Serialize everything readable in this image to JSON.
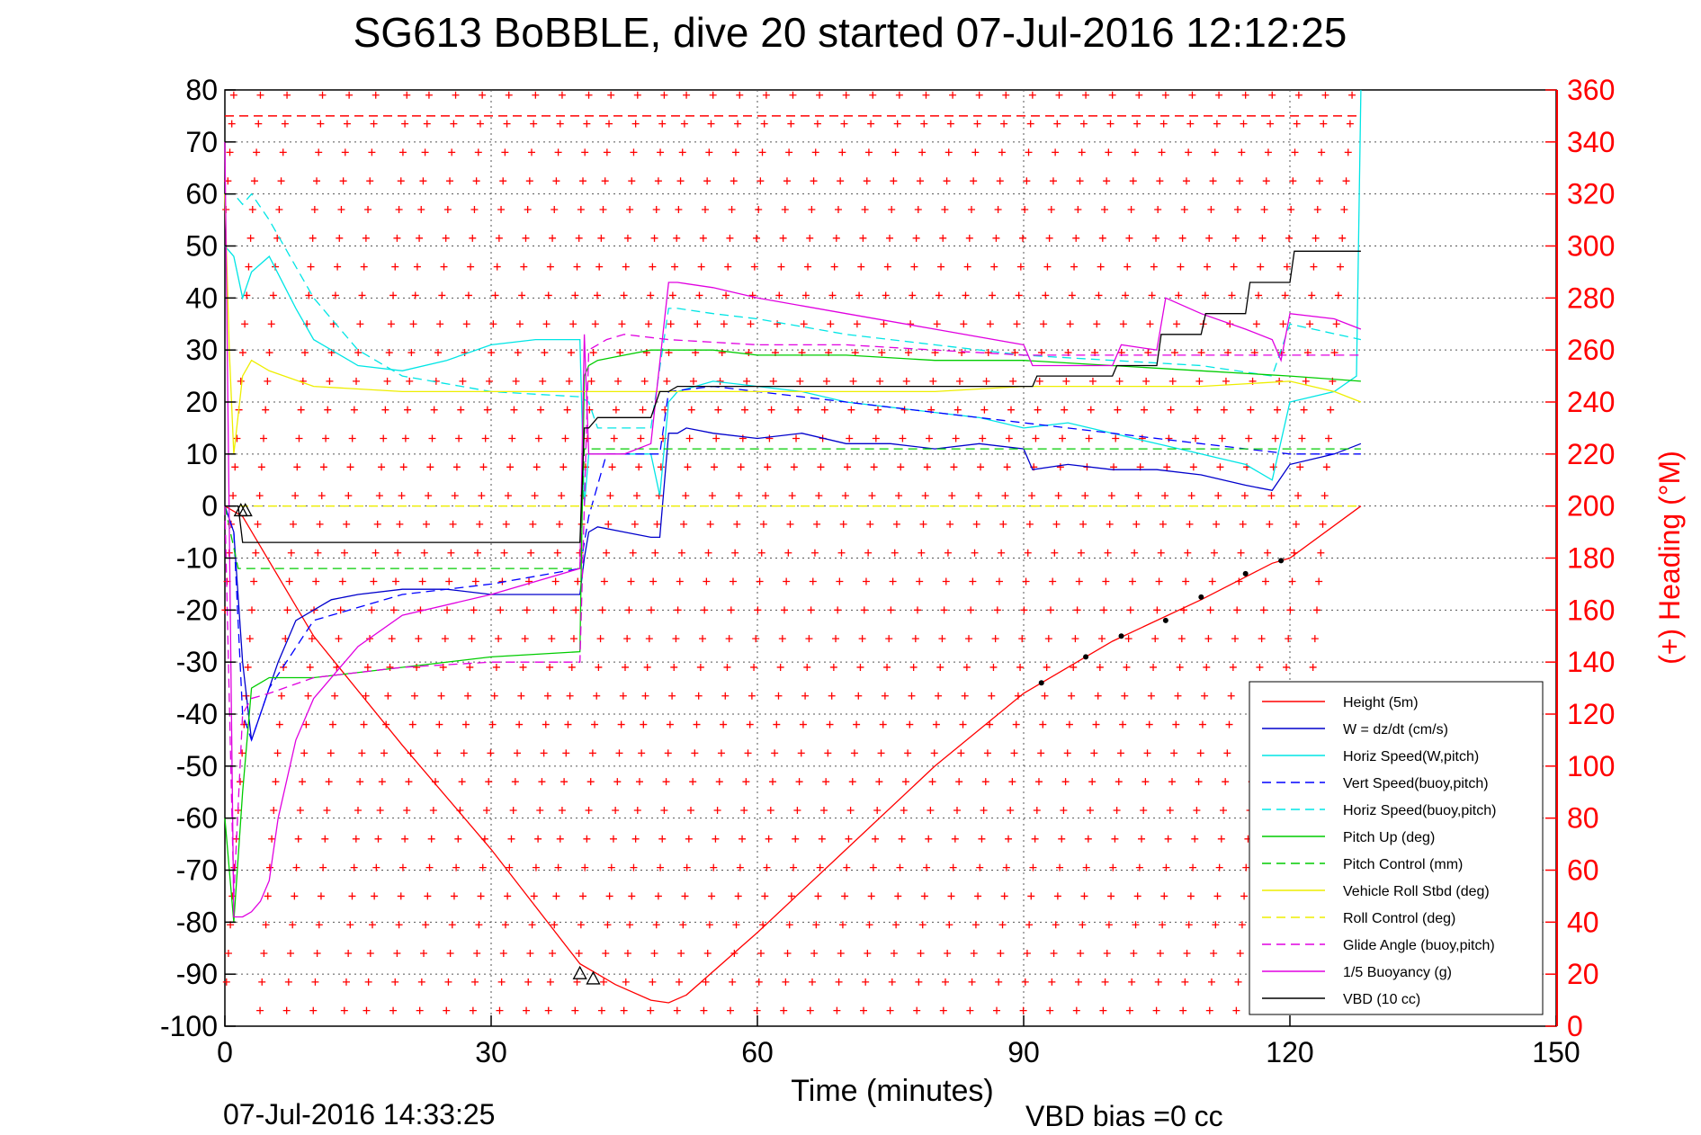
{
  "chart_data": {
    "type": "line",
    "title": "SG613 BoBBLE, dive 20 started 07-Jul-2016 12:12:25",
    "xlabel": "Time (minutes)",
    "ylabel_right": "(+) Heading (°M)",
    "xlim": [
      0,
      150
    ],
    "ylim": [
      -100,
      80
    ],
    "ylim_right": [
      0,
      360
    ],
    "x_ticks": [
      "0",
      "30",
      "60",
      "90",
      "120",
      "150"
    ],
    "y_ticks": [
      "80",
      "70",
      "60",
      "50",
      "40",
      "30",
      "20",
      "10",
      "0",
      "-10",
      "-20",
      "-30",
      "-40",
      "-50",
      "-60",
      "-70",
      "-80",
      "-90",
      "-100"
    ],
    "y_right_ticks": [
      "360",
      "340",
      "320",
      "300",
      "280",
      "260",
      "240",
      "220",
      "200",
      "180",
      "160",
      "140",
      "120",
      "100",
      "80",
      "60",
      "40",
      "20",
      "0"
    ],
    "grid": true,
    "legend_position": "bottom-right",
    "footer_left": "07-Jul-2016 14:33:25",
    "footer_right": "VBD bias =0 cc",
    "series": [
      {
        "name": "Height (5m)",
        "color": "#ff0000",
        "style": "solid",
        "x": [
          0,
          2,
          10,
          20,
          30,
          40,
          44,
          48,
          50,
          52,
          60,
          70,
          80,
          90,
          100,
          110,
          118,
          120,
          128
        ],
        "y": [
          0,
          -2,
          -25,
          -46,
          -66,
          -88,
          -92,
          -95,
          -95.5,
          -94,
          -82,
          -66,
          -50,
          -36,
          -26,
          -18,
          -11,
          -10,
          0
        ]
      },
      {
        "name": "W = dz/dt (cm/s)",
        "color": "#0000cc",
        "style": "solid",
        "x": [
          0,
          1,
          2,
          3,
          4,
          5,
          6,
          8,
          10,
          12,
          15,
          20,
          25,
          30,
          35,
          40,
          40.5,
          41,
          42,
          45,
          48,
          49,
          50,
          51,
          52,
          55,
          60,
          65,
          70,
          75,
          80,
          85,
          90,
          91,
          95,
          100,
          105,
          110,
          115,
          118,
          120,
          125,
          128
        ],
        "y": [
          0,
          -5,
          -30,
          -45,
          -40,
          -35,
          -30,
          -22,
          -20,
          -18,
          -17,
          -16,
          -16,
          -17,
          -17,
          -17,
          -10,
          -5,
          -4,
          -5,
          -6,
          -6,
          14,
          14,
          15,
          14,
          13,
          14,
          12,
          12,
          11,
          12,
          11,
          7,
          8,
          7,
          7,
          6,
          4,
          3,
          8,
          10,
          12
        ]
      },
      {
        "name": "Horiz Speed(W,pitch)",
        "color": "#00e5e5",
        "style": "solid",
        "x": [
          0,
          1,
          2,
          3,
          5,
          8,
          10,
          15,
          20,
          25,
          30,
          35,
          40,
          40.5,
          41,
          42,
          45,
          48,
          49,
          50,
          51,
          55,
          60,
          65,
          70,
          75,
          80,
          85,
          90,
          95,
          100,
          105,
          110,
          115,
          118,
          120,
          125,
          127.5,
          128
        ],
        "y": [
          50,
          48,
          40,
          45,
          48,
          38,
          32,
          27,
          26,
          28,
          31,
          32,
          32,
          0,
          10,
          10,
          10,
          10,
          2,
          20,
          22,
          24,
          23,
          22,
          20,
          19,
          18,
          17,
          15,
          16,
          14,
          12,
          10,
          8,
          5,
          20,
          22,
          25,
          80
        ]
      },
      {
        "name": "Vert Speed(buoy,pitch)",
        "color": "#0000ff",
        "style": "dashed",
        "x": [
          0,
          1,
          2,
          3,
          5,
          10,
          20,
          30,
          40,
          41,
          43,
          48,
          49,
          50,
          55,
          60,
          70,
          80,
          90,
          100,
          110,
          120,
          128
        ],
        "y": [
          0,
          -5,
          -40,
          -45,
          -35,
          -22,
          -17,
          -15,
          -12,
          -2,
          10,
          10,
          10,
          22,
          23,
          22,
          20,
          18,
          16,
          14,
          12,
          10,
          10
        ]
      },
      {
        "name": "Horiz Speed(buoy,pitch)",
        "color": "#00e5e5",
        "style": "dashed",
        "x": [
          0,
          1,
          2,
          3,
          5,
          10,
          15,
          20,
          30,
          40,
          41,
          42,
          45,
          48,
          50,
          51,
          55,
          60,
          70,
          80,
          90,
          100,
          110,
          118,
          120,
          128
        ],
        "y": [
          60,
          60,
          58,
          60,
          55,
          40,
          30,
          25,
          22,
          21,
          20,
          15,
          15,
          15,
          38,
          38,
          37,
          36,
          33,
          31,
          29,
          28,
          27,
          25,
          35,
          32
        ]
      },
      {
        "name": "Pitch Up (deg)",
        "color": "#00cc00",
        "style": "solid",
        "x": [
          0,
          1,
          2,
          3,
          5,
          10,
          20,
          30,
          40,
          40.5,
          41,
          42,
          45,
          48,
          50,
          55,
          60,
          70,
          80,
          90,
          100,
          110,
          120,
          128
        ],
        "y": [
          -60,
          -80,
          -55,
          -35,
          -33,
          -33,
          -31,
          -29,
          -28,
          25,
          27,
          28,
          29,
          30,
          30,
          30,
          29,
          29,
          28,
          28,
          27,
          26,
          25,
          24
        ]
      },
      {
        "name": "Pitch Control (mm)",
        "color": "#00cc00",
        "style": "dashed",
        "x": [
          0,
          1.5,
          2,
          40,
          40.5,
          41,
          128
        ],
        "y": [
          0,
          -12,
          -12,
          -12,
          11,
          11,
          11
        ]
      },
      {
        "name": "Vehicle Roll Stbd (deg)",
        "color": "#eeee00",
        "style": "solid",
        "x": [
          0,
          0.5,
          1,
          2,
          3,
          5,
          10,
          20,
          30,
          40,
          50,
          60,
          70,
          80,
          90,
          100,
          110,
          120,
          125,
          128
        ],
        "y": [
          60,
          30,
          10,
          25,
          28,
          26,
          23,
          22,
          22,
          22,
          22,
          22,
          22,
          22,
          23,
          23,
          23,
          24,
          22,
          20
        ]
      },
      {
        "name": "Roll Control (deg)",
        "color": "#eeee00",
        "style": "dashed",
        "x": [
          0,
          128
        ],
        "y": [
          0,
          0
        ]
      },
      {
        "name": "Glide Angle (buoy,pitch)",
        "color": "#e000e0",
        "style": "dashed",
        "x": [
          0,
          1,
          2,
          3,
          5,
          10,
          20,
          30,
          40,
          41,
          43,
          45,
          50,
          60,
          70,
          80,
          90,
          100,
          110,
          120,
          128
        ],
        "y": [
          0,
          -75,
          -40,
          -37,
          -36,
          -33,
          -31,
          -30,
          -30,
          30,
          32,
          33,
          32,
          31,
          31,
          30,
          29,
          29,
          29,
          29,
          29
        ]
      },
      {
        "name": "1/5 Buoyancy (g)",
        "color": "#e000e0",
        "style": "solid",
        "x": [
          0,
          1,
          2,
          3,
          4,
          5,
          6,
          8,
          10,
          15,
          20,
          30,
          40,
          40.5,
          41,
          42,
          45,
          48,
          50,
          51,
          55,
          60,
          70,
          80,
          90,
          91,
          95,
          100,
          101,
          105,
          106,
          110,
          115,
          118,
          119,
          120,
          125,
          128
        ],
        "y": [
          70,
          -79,
          -79,
          -78,
          -76,
          -72,
          -60,
          -45,
          -37,
          -27,
          -21,
          -17,
          -12,
          33,
          10,
          10,
          10,
          12,
          43,
          43,
          42,
          40,
          37,
          34,
          31,
          27,
          27,
          27,
          31,
          30,
          40,
          37,
          34,
          32,
          28,
          37,
          36,
          34
        ]
      },
      {
        "name": "VBD (10 cc)",
        "color": "#000000",
        "style": "solid",
        "x": [
          0,
          1.5,
          2,
          40,
          40.5,
          41,
          42,
          48,
          49,
          50,
          51,
          91,
          91.5,
          100,
          100.5,
          105,
          105.5,
          110,
          110.5,
          115,
          115.5,
          120,
          120.5,
          128
        ],
        "y": [
          0,
          0,
          -7,
          -7,
          15,
          15,
          17,
          17,
          22,
          22,
          23,
          23,
          25,
          25,
          27,
          27,
          33,
          33,
          37,
          37,
          43,
          43,
          49,
          49
        ]
      }
    ],
    "reference_lines": [
      {
        "name": "max-heading-dashed-line",
        "color": "#ff0000",
        "style": "dashed",
        "x": [
          0,
          128
        ],
        "y_right": [
          350,
          350
        ]
      }
    ],
    "heading_marker": {
      "color": "#ff0000",
      "symbol": "+",
      "sweep_starts": [
        1,
        4,
        7,
        11,
        14,
        17,
        20.5,
        23,
        26,
        29,
        32,
        35,
        38,
        41,
        43.5,
        46.5,
        49.5,
        52,
        55,
        58,
        61,
        64,
        67,
        70,
        73,
        76,
        79,
        82,
        85,
        88,
        91,
        94,
        97,
        100,
        103,
        106,
        109,
        112,
        115,
        118,
        121,
        124,
        127
      ],
      "sweep_slope_min_per_deg": -0.02
    },
    "markers": {
      "triangles": [
        {
          "x": 1.8,
          "y": -1
        },
        {
          "x": 2.3,
          "y": -1
        },
        {
          "x": 40,
          "y": -90
        },
        {
          "x": 41.5,
          "y": -91
        }
      ],
      "black_dots": [
        {
          "x": 92,
          "y": -34
        },
        {
          "x": 97,
          "y": -29
        },
        {
          "x": 101,
          "y": -25
        },
        {
          "x": 106,
          "y": -22
        },
        {
          "x": 110,
          "y": -17.5
        },
        {
          "x": 115,
          "y": -13
        },
        {
          "x": 119,
          "y": -10.5
        }
      ]
    }
  }
}
